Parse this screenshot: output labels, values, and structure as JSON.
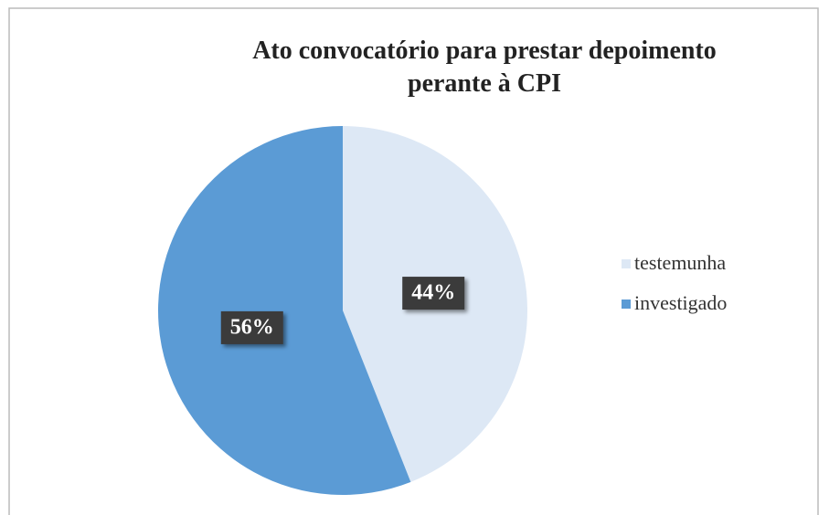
{
  "chart_data": {
    "type": "pie",
    "title": "Ato convocatório para prestar depoimento perante à CPI",
    "categories": [
      "testemunha",
      "investigado"
    ],
    "values": [
      44,
      56
    ],
    "value_labels": [
      "44%",
      "56%"
    ],
    "colors": [
      "#dde8f5",
      "#5b9bd5"
    ],
    "legend": "right"
  }
}
